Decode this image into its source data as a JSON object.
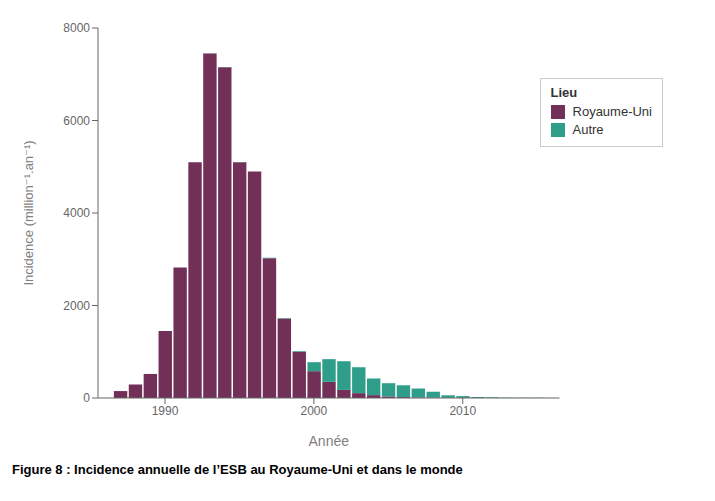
{
  "chart_data": {
    "type": "bar",
    "stacked": true,
    "x": [
      1987,
      1988,
      1989,
      1990,
      1991,
      1992,
      1993,
      1994,
      1995,
      1996,
      1997,
      1998,
      1999,
      2000,
      2001,
      2002,
      2003,
      2004,
      2005,
      2006,
      2007,
      2008,
      2009,
      2010,
      2011,
      2012,
      2013,
      2014,
      2015
    ],
    "series": [
      {
        "name": "Royaume-Uni",
        "color": "#722F57",
        "values": [
          150,
          290,
          520,
          1450,
          2820,
          5100,
          7450,
          7150,
          5100,
          4900,
          3020,
          1720,
          1000,
          580,
          350,
          175,
          105,
          62,
          35,
          20,
          10,
          5,
          3,
          1,
          0,
          0,
          0,
          0,
          0
        ]
      },
      {
        "name": "Autre",
        "color": "#2E9E8A",
        "values": [
          0,
          0,
          0,
          0,
          0,
          0,
          5,
          5,
          5,
          5,
          10,
          10,
          15,
          195,
          490,
          620,
          560,
          360,
          285,
          255,
          195,
          130,
          55,
          40,
          22,
          15,
          8,
          3,
          5
        ]
      }
    ],
    "xlabel": "Année",
    "ylabel": "Incidence (million⁻¹.an⁻¹)",
    "legend_title": "Lieu",
    "legend": "upper right",
    "caption": "Figure 8 : Incidence annuelle de l’ESB au Royaume-Uni et dans le monde",
    "xlim": [
      1985.5,
      2016.5
    ],
    "xticks": [
      1990,
      2000,
      2010
    ],
    "ylim": [
      0,
      8000
    ],
    "yticks": [
      0,
      2000,
      4000,
      6000,
      8000
    ],
    "grid": false
  }
}
